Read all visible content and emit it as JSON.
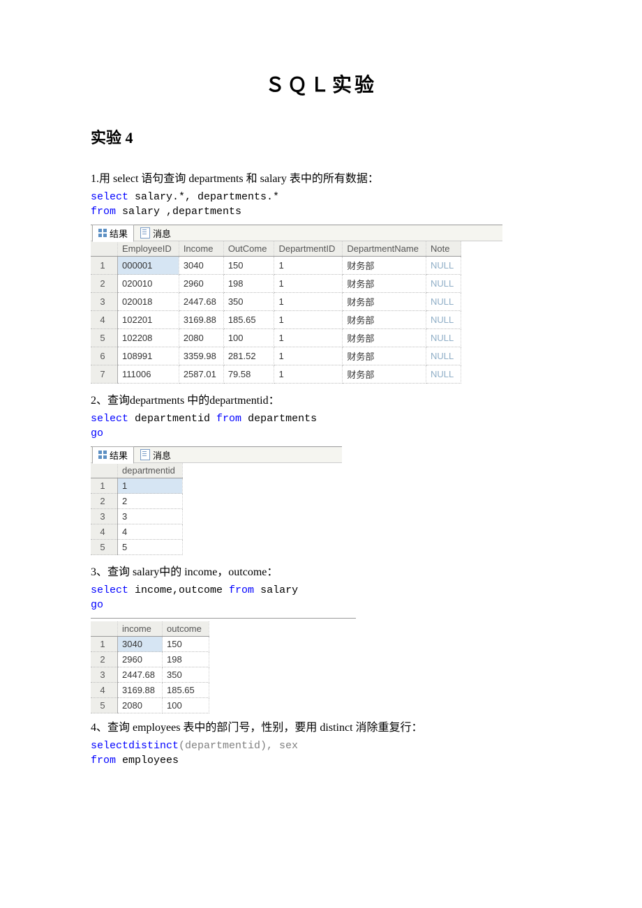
{
  "title": "ＳＱＬ实验",
  "section_heading": "实验 4",
  "q1_text": "1.用 select 语句查询 departments 和 salary 表中的所有数据：",
  "q1_code": {
    "l1_kw": "select",
    "l1_rest": " salary.*, departments.*",
    "l2_kw": "from",
    "l2_rest": " salary ,departments"
  },
  "tab_results": "结果",
  "tab_messages": "消息",
  "table1": {
    "headers": [
      "EmployeeID",
      "Income",
      "OutCome",
      "DepartmentID",
      "DepartmentName",
      "Note"
    ],
    "rows": [
      [
        "000001",
        "3040",
        "150",
        "1",
        "财务部",
        "NULL"
      ],
      [
        "020010",
        "2960",
        "198",
        "1",
        "财务部",
        "NULL"
      ],
      [
        "020018",
        "2447.68",
        "350",
        "1",
        "财务部",
        "NULL"
      ],
      [
        "102201",
        "3169.88",
        "185.65",
        "1",
        "财务部",
        "NULL"
      ],
      [
        "102208",
        "2080",
        "100",
        "1",
        "财务部",
        "NULL"
      ],
      [
        "108991",
        "3359.98",
        "281.52",
        "1",
        "财务部",
        "NULL"
      ],
      [
        "111006",
        "2587.01",
        "79.58",
        "1",
        "财务部",
        "NULL"
      ]
    ]
  },
  "q2_text": "2、查询departments 中的departmentid：",
  "q2_code": {
    "l1_kw1": "select",
    "l1_mid": " departmentid ",
    "l1_kw2": "from",
    "l1_rest": " departments",
    "l2": "go"
  },
  "table2": {
    "headers": [
      "departmentid"
    ],
    "rows": [
      [
        "1"
      ],
      [
        "2"
      ],
      [
        "3"
      ],
      [
        "4"
      ],
      [
        "5"
      ]
    ]
  },
  "q3_text": "3、查询 salary中的 income，outcome：",
  "q3_code": {
    "l1_kw1": "select",
    "l1_mid": "  income,outcome ",
    "l1_kw2": "from",
    "l1_rest": " salary",
    "l2": "go"
  },
  "table3": {
    "headers": [
      "income",
      "outcome"
    ],
    "rows": [
      [
        "3040",
        "150"
      ],
      [
        "2960",
        "198"
      ],
      [
        "2447.68",
        "350"
      ],
      [
        "3169.88",
        "185.65"
      ],
      [
        "2080",
        "100"
      ]
    ]
  },
  "q4_text": "4、查询 employees 表中的部门号，性别，要用 distinct 消除重复行：",
  "q4_code": {
    "l1_kw1": "select",
    "l1_kw2": "distinct",
    "l1_rest": "(departmentid), sex",
    "l2_kw": "from",
    "l2_rest": " employees"
  }
}
